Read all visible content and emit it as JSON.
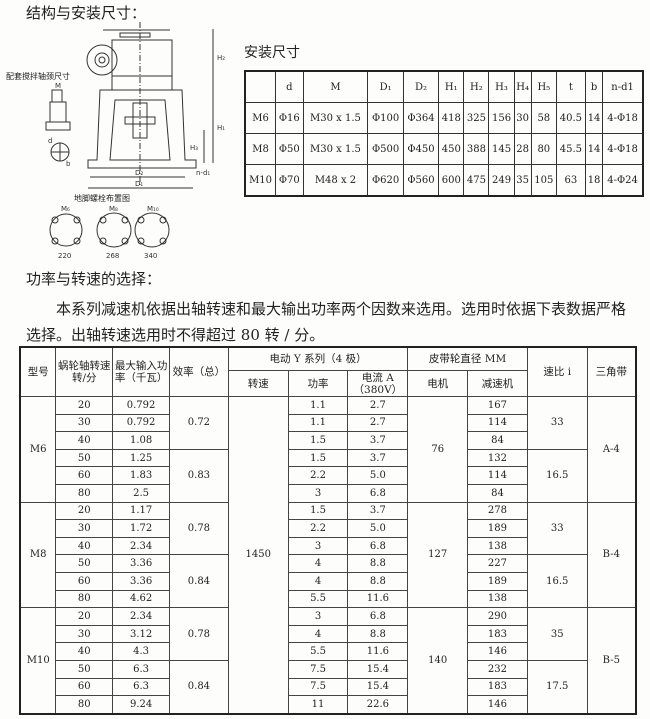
{
  "section1_title": "结构与安装尺寸：",
  "drawing": {
    "shaft_label": "配套搅拌轴颈尺寸",
    "bolt_layout_title": "地脚螺栓布置图",
    "labels": {
      "M": "M",
      "d": "d",
      "b": "b",
      "H1": "H₁",
      "H2": "H₂",
      "H3": "H₃",
      "H4": "H₄",
      "H5": "H₅",
      "D1": "D₁",
      "D2": "D₂",
      "nd": "n-d₁"
    },
    "bolt_models": [
      "M₆",
      "M₈",
      "M₁₀"
    ],
    "bolt_spacings": [
      "220",
      "268",
      "340"
    ]
  },
  "dim_table": {
    "title": "安装尺寸",
    "headers": [
      "",
      "d",
      "M",
      "D₁",
      "D₂",
      "H₁",
      "H₂",
      "H₃",
      "H₄",
      "H₅",
      "t",
      "b",
      "n-d1"
    ],
    "rows": [
      [
        "M6",
        "Φ16",
        "M30 x 1.5",
        "Φ100",
        "Φ364",
        "418",
        "325",
        "156",
        "30",
        "58",
        "40.5",
        "14",
        "4-Φ18"
      ],
      [
        "M8",
        "Φ50",
        "M30 x 1.5",
        "Φ500",
        "Φ450",
        "450",
        "388",
        "145",
        "28",
        "80",
        "45.5",
        "14",
        "4-Φ18"
      ],
      [
        "M10",
        "Φ70",
        "M48 x 2",
        "Φ620",
        "Φ560",
        "600",
        "475",
        "249",
        "35",
        "105",
        "63",
        "18",
        "4-Φ24"
      ]
    ]
  },
  "section2_title": "功率与转速的选择：",
  "paragraph": "本系列减速机依据出轴转速和最大输出功率两个因数来选用。选用时依据下表数据严格选择。出轴转速选用时不得超过 80 转 / 分。",
  "main_table": {
    "headers": {
      "model": "型号",
      "speed": "蜗轮轴转速转/分",
      "power": "最大输入功率（千瓦）",
      "eff": "效率（总）",
      "motor_group": "电动 Y 系列（4 极）",
      "motor_speed": "转速",
      "motor_power": "功率",
      "current": "电流 A（380V）",
      "pulley_group": "皮带轮直径 MM",
      "pulley_motor": "电机",
      "pulley_reducer": "减速机",
      "ratio": "速比 i",
      "belt": "三角带"
    },
    "groups": [
      {
        "model": "M6",
        "pulley_motor": "76",
        "belt": "A-4",
        "eff": [
          "0.72",
          "0.83"
        ],
        "ratio": [
          "33",
          "16.5"
        ],
        "rows": [
          [
            "20",
            "0.792",
            "1.1",
            "2.7",
            "167"
          ],
          [
            "30",
            "0.792",
            "1.1",
            "2.7",
            "114"
          ],
          [
            "40",
            "1.08",
            "1.5",
            "3.7",
            "84"
          ],
          [
            "50",
            "1.25",
            "1.5",
            "3.7",
            "132"
          ],
          [
            "60",
            "1.83",
            "2.2",
            "5.0",
            "114"
          ],
          [
            "80",
            "2.5",
            "3",
            "6.8",
            "84"
          ]
        ]
      },
      {
        "model": "M8",
        "pulley_motor": "127",
        "belt": "B-4",
        "eff": [
          "0.78",
          "0.84"
        ],
        "ratio": [
          "33",
          "16.5"
        ],
        "rows": [
          [
            "20",
            "1.17",
            "1.5",
            "3.7",
            "278"
          ],
          [
            "30",
            "1.72",
            "2.2",
            "5.0",
            "189"
          ],
          [
            "40",
            "2.34",
            "3",
            "6.8",
            "138"
          ],
          [
            "50",
            "3.36",
            "4",
            "8.8",
            "227"
          ],
          [
            "60",
            "3.36",
            "4",
            "8.8",
            "189"
          ],
          [
            "80",
            "4.62",
            "5.5",
            "11.6",
            "138"
          ]
        ]
      },
      {
        "model": "M10",
        "pulley_motor": "140",
        "belt": "B-5",
        "eff": [
          "0.78",
          "0.84"
        ],
        "ratio": [
          "35",
          "17.5"
        ],
        "rows": [
          [
            "20",
            "2.34",
            "3",
            "6.8",
            "290"
          ],
          [
            "30",
            "3.12",
            "4",
            "8.8",
            "183"
          ],
          [
            "40",
            "4.3",
            "5.5",
            "11.6",
            "146"
          ],
          [
            "50",
            "6.3",
            "7.5",
            "15.4",
            "232"
          ],
          [
            "60",
            "6.3",
            "7.5",
            "15.4",
            "183"
          ],
          [
            "80",
            "9.24",
            "11",
            "22.6",
            "146"
          ]
        ]
      }
    ],
    "motor_speed": "1450"
  }
}
